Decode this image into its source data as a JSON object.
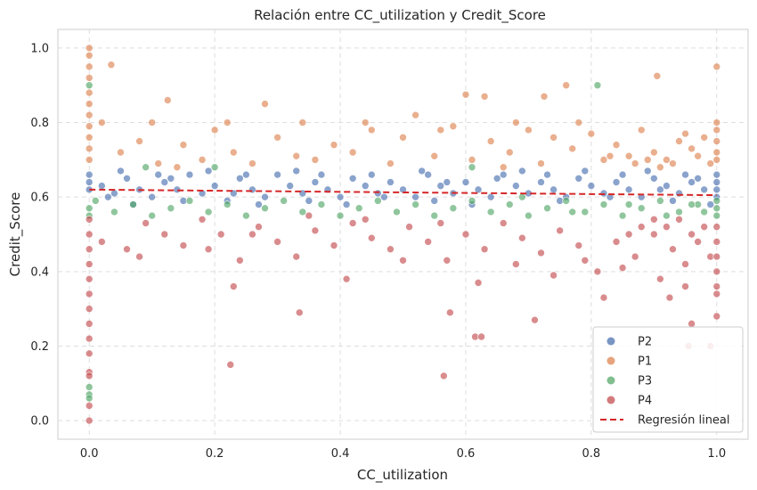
{
  "chart_data": {
    "type": "scatter",
    "title": "Relación entre CC_utilization y Credit_Score",
    "xlabel": "CC_utilization",
    "ylabel": "Credit_Score",
    "xlim": [
      -0.05,
      1.05
    ],
    "ylim": [
      -0.05,
      1.05
    ],
    "xticks": [
      0.0,
      0.2,
      0.4,
      0.6,
      0.8,
      1.0
    ],
    "xtick_labels": [
      "0.0",
      "0.2",
      "0.4",
      "0.6",
      "0.8",
      "1.0"
    ],
    "yticks": [
      0.0,
      0.2,
      0.4,
      0.6,
      0.8,
      1.0
    ],
    "ytick_labels": [
      "0.0",
      "0.2",
      "0.4",
      "0.6",
      "0.8",
      "1.0"
    ],
    "grid": true,
    "grid_style": "dashed",
    "legend_position": "bottom-right",
    "series": [
      {
        "name": "P2",
        "color": "#4c72b0",
        "points": [
          [
            0.0,
            0.62
          ],
          [
            0.0,
            0.64
          ],
          [
            0.0,
            0.66
          ],
          [
            0.02,
            0.63
          ],
          [
            0.04,
            0.61
          ],
          [
            0.06,
            0.65
          ],
          [
            0.08,
            0.62
          ],
          [
            0.1,
            0.6
          ],
          [
            0.12,
            0.64
          ],
          [
            0.14,
            0.62
          ],
          [
            0.16,
            0.66
          ],
          [
            0.18,
            0.61
          ],
          [
            0.2,
            0.63
          ],
          [
            0.22,
            0.59
          ],
          [
            0.24,
            0.65
          ],
          [
            0.26,
            0.62
          ],
          [
            0.28,
            0.6
          ],
          [
            0.3,
            0.66
          ],
          [
            0.32,
            0.63
          ],
          [
            0.34,
            0.61
          ],
          [
            0.36,
            0.64
          ],
          [
            0.38,
            0.62
          ],
          [
            0.4,
            0.6
          ],
          [
            0.42,
            0.65
          ],
          [
            0.44,
            0.63
          ],
          [
            0.46,
            0.61
          ],
          [
            0.48,
            0.64
          ],
          [
            0.5,
            0.62
          ],
          [
            0.52,
            0.6
          ],
          [
            0.54,
            0.66
          ],
          [
            0.56,
            0.63
          ],
          [
            0.58,
            0.61
          ],
          [
            0.6,
            0.64
          ],
          [
            0.62,
            0.62
          ],
          [
            0.64,
            0.6
          ],
          [
            0.66,
            0.66
          ],
          [
            0.68,
            0.63
          ],
          [
            0.7,
            0.61
          ],
          [
            0.72,
            0.64
          ],
          [
            0.74,
            0.62
          ],
          [
            0.76,
            0.6
          ],
          [
            0.78,
            0.65
          ],
          [
            0.8,
            0.63
          ],
          [
            0.82,
            0.61
          ],
          [
            0.84,
            0.64
          ],
          [
            0.86,
            0.62
          ],
          [
            0.88,
            0.6
          ],
          [
            0.9,
            0.65
          ],
          [
            0.92,
            0.63
          ],
          [
            0.94,
            0.61
          ],
          [
            0.96,
            0.64
          ],
          [
            0.98,
            0.62
          ],
          [
            1.0,
            0.6
          ],
          [
            1.0,
            0.62
          ],
          [
            1.0,
            0.64
          ],
          [
            1.0,
            0.66
          ],
          [
            0.97,
            0.65
          ],
          [
            0.93,
            0.59
          ],
          [
            0.85,
            0.66
          ],
          [
            0.75,
            0.59
          ],
          [
            0.65,
            0.65
          ],
          [
            0.55,
            0.59
          ],
          [
            0.45,
            0.66
          ],
          [
            0.35,
            0.59
          ],
          [
            0.25,
            0.66
          ],
          [
            0.15,
            0.59
          ],
          [
            0.05,
            0.67
          ],
          [
            0.11,
            0.66
          ],
          [
            0.33,
            0.67
          ],
          [
            0.61,
            0.58
          ],
          [
            0.79,
            0.67
          ],
          [
            0.99,
            0.58
          ],
          [
            0.89,
            0.67
          ],
          [
            0.69,
            0.67
          ],
          [
            0.53,
            0.67
          ],
          [
            0.41,
            0.58
          ],
          [
            0.27,
            0.58
          ],
          [
            0.19,
            0.67
          ],
          [
            0.07,
            0.58
          ],
          [
            0.91,
            0.62
          ],
          [
            0.95,
            0.66
          ],
          [
            0.83,
            0.6
          ],
          [
            0.73,
            0.66
          ],
          [
            0.57,
            0.64
          ],
          [
            0.47,
            0.6
          ],
          [
            0.37,
            0.66
          ],
          [
            0.23,
            0.61
          ],
          [
            0.13,
            0.65
          ],
          [
            0.03,
            0.6
          ]
        ]
      },
      {
        "name": "P1",
        "color": "#dd8452",
        "points": [
          [
            0.0,
            1.0
          ],
          [
            0.0,
            0.98
          ],
          [
            0.0,
            0.95
          ],
          [
            0.0,
            0.92
          ],
          [
            0.0,
            0.88
          ],
          [
            0.0,
            0.85
          ],
          [
            0.0,
            0.82
          ],
          [
            0.0,
            0.79
          ],
          [
            0.0,
            0.76
          ],
          [
            0.0,
            0.73
          ],
          [
            0.0,
            0.7
          ],
          [
            0.035,
            0.955
          ],
          [
            0.125,
            0.86
          ],
          [
            0.28,
            0.85
          ],
          [
            0.6,
            0.875
          ],
          [
            0.63,
            0.87
          ],
          [
            0.725,
            0.87
          ],
          [
            0.76,
            0.9
          ],
          [
            0.905,
            0.925
          ],
          [
            1.0,
            0.95
          ],
          [
            0.02,
            0.8
          ],
          [
            0.05,
            0.72
          ],
          [
            0.08,
            0.75
          ],
          [
            0.11,
            0.69
          ],
          [
            0.15,
            0.74
          ],
          [
            0.18,
            0.7
          ],
          [
            0.2,
            0.78
          ],
          [
            0.23,
            0.72
          ],
          [
            0.26,
            0.69
          ],
          [
            0.3,
            0.76
          ],
          [
            0.33,
            0.71
          ],
          [
            0.36,
            0.7
          ],
          [
            0.39,
            0.74
          ],
          [
            0.42,
            0.72
          ],
          [
            0.45,
            0.78
          ],
          [
            0.48,
            0.69
          ],
          [
            0.5,
            0.76
          ],
          [
            0.52,
            0.82
          ],
          [
            0.55,
            0.71
          ],
          [
            0.58,
            0.79
          ],
          [
            0.61,
            0.7
          ],
          [
            0.64,
            0.75
          ],
          [
            0.67,
            0.72
          ],
          [
            0.7,
            0.78
          ],
          [
            0.72,
            0.69
          ],
          [
            0.74,
            0.76
          ],
          [
            0.77,
            0.73
          ],
          [
            0.8,
            0.77
          ],
          [
            0.82,
            0.7
          ],
          [
            0.84,
            0.74
          ],
          [
            0.86,
            0.71
          ],
          [
            0.88,
            0.78
          ],
          [
            0.9,
            0.72
          ],
          [
            0.92,
            0.7
          ],
          [
            0.94,
            0.75
          ],
          [
            0.96,
            0.73
          ],
          [
            0.98,
            0.76
          ],
          [
            1.0,
            0.8
          ],
          [
            1.0,
            0.78
          ],
          [
            1.0,
            0.75
          ],
          [
            1.0,
            0.72
          ],
          [
            1.0,
            0.7
          ],
          [
            0.99,
            0.69
          ],
          [
            0.97,
            0.71
          ],
          [
            0.93,
            0.69
          ],
          [
            0.89,
            0.7
          ],
          [
            0.87,
            0.69
          ],
          [
            0.83,
            0.71
          ],
          [
            0.78,
            0.8
          ],
          [
            0.68,
            0.8
          ],
          [
            0.56,
            0.78
          ],
          [
            0.44,
            0.8
          ],
          [
            0.34,
            0.8
          ],
          [
            0.22,
            0.8
          ],
          [
            0.1,
            0.8
          ],
          [
            0.14,
            0.68
          ],
          [
            0.66,
            0.68
          ],
          [
            0.91,
            0.68
          ],
          [
            0.95,
            0.77
          ]
        ]
      },
      {
        "name": "P3",
        "color": "#55a868",
        "points": [
          [
            0.0,
            0.9
          ],
          [
            0.0,
            0.07
          ],
          [
            0.0,
            0.09
          ],
          [
            0.0,
            0.06
          ],
          [
            0.0,
            0.55
          ],
          [
            0.0,
            0.57
          ],
          [
            0.81,
            0.9
          ],
          [
            0.01,
            0.59
          ],
          [
            0.04,
            0.56
          ],
          [
            0.07,
            0.58
          ],
          [
            0.1,
            0.55
          ],
          [
            0.13,
            0.57
          ],
          [
            0.16,
            0.59
          ],
          [
            0.19,
            0.56
          ],
          [
            0.22,
            0.58
          ],
          [
            0.25,
            0.55
          ],
          [
            0.28,
            0.57
          ],
          [
            0.31,
            0.59
          ],
          [
            0.34,
            0.56
          ],
          [
            0.37,
            0.58
          ],
          [
            0.4,
            0.55
          ],
          [
            0.43,
            0.57
          ],
          [
            0.46,
            0.59
          ],
          [
            0.49,
            0.56
          ],
          [
            0.52,
            0.58
          ],
          [
            0.55,
            0.55
          ],
          [
            0.58,
            0.57
          ],
          [
            0.61,
            0.59
          ],
          [
            0.64,
            0.56
          ],
          [
            0.67,
            0.58
          ],
          [
            0.7,
            0.55
          ],
          [
            0.73,
            0.57
          ],
          [
            0.76,
            0.59
          ],
          [
            0.79,
            0.56
          ],
          [
            0.82,
            0.58
          ],
          [
            0.85,
            0.55
          ],
          [
            0.88,
            0.57
          ],
          [
            0.91,
            0.59
          ],
          [
            0.94,
            0.56
          ],
          [
            0.97,
            0.58
          ],
          [
            1.0,
            0.55
          ],
          [
            1.0,
            0.57
          ],
          [
            1.0,
            0.59
          ],
          [
            0.98,
            0.56
          ],
          [
            0.92,
            0.55
          ],
          [
            0.86,
            0.58
          ],
          [
            0.2,
            0.68
          ],
          [
            0.09,
            0.68
          ],
          [
            0.61,
            0.68
          ],
          [
            0.69,
            0.6
          ],
          [
            0.77,
            0.56
          ],
          [
            0.96,
            0.58
          ]
        ]
      },
      {
        "name": "P4",
        "color": "#c44e52",
        "points": [
          [
            0.0,
            0.54
          ],
          [
            0.0,
            0.5
          ],
          [
            0.0,
            0.46
          ],
          [
            0.0,
            0.42
          ],
          [
            0.0,
            0.38
          ],
          [
            0.0,
            0.34
          ],
          [
            0.0,
            0.3
          ],
          [
            0.0,
            0.26
          ],
          [
            0.0,
            0.22
          ],
          [
            0.0,
            0.18
          ],
          [
            0.0,
            0.13
          ],
          [
            0.0,
            0.12
          ],
          [
            0.0,
            0.04
          ],
          [
            0.0,
            0.0
          ],
          [
            0.225,
            0.15
          ],
          [
            0.23,
            0.36
          ],
          [
            0.335,
            0.29
          ],
          [
            0.565,
            0.12
          ],
          [
            0.575,
            0.29
          ],
          [
            0.615,
            0.225
          ],
          [
            0.625,
            0.225
          ],
          [
            0.71,
            0.27
          ],
          [
            0.82,
            0.33
          ],
          [
            0.925,
            0.33
          ],
          [
            0.96,
            0.26
          ],
          [
            0.955,
            0.2
          ],
          [
            0.99,
            0.2
          ],
          [
            1.0,
            0.28
          ],
          [
            1.0,
            0.34
          ],
          [
            0.02,
            0.48
          ],
          [
            0.06,
            0.46
          ],
          [
            0.09,
            0.53
          ],
          [
            0.12,
            0.5
          ],
          [
            0.15,
            0.47
          ],
          [
            0.18,
            0.54
          ],
          [
            0.21,
            0.5
          ],
          [
            0.24,
            0.43
          ],
          [
            0.27,
            0.52
          ],
          [
            0.3,
            0.48
          ],
          [
            0.33,
            0.44
          ],
          [
            0.36,
            0.51
          ],
          [
            0.39,
            0.47
          ],
          [
            0.42,
            0.53
          ],
          [
            0.45,
            0.49
          ],
          [
            0.48,
            0.46
          ],
          [
            0.51,
            0.52
          ],
          [
            0.54,
            0.48
          ],
          [
            0.57,
            0.43
          ],
          [
            0.6,
            0.5
          ],
          [
            0.63,
            0.46
          ],
          [
            0.66,
            0.53
          ],
          [
            0.69,
            0.49
          ],
          [
            0.72,
            0.45
          ],
          [
            0.75,
            0.51
          ],
          [
            0.78,
            0.47
          ],
          [
            0.81,
            0.4
          ],
          [
            0.84,
            0.48
          ],
          [
            0.87,
            0.44
          ],
          [
            0.9,
            0.5
          ],
          [
            0.93,
            0.46
          ],
          [
            0.95,
            0.42
          ],
          [
            0.97,
            0.48
          ],
          [
            0.99,
            0.44
          ],
          [
            1.0,
            0.52
          ],
          [
            1.0,
            0.48
          ],
          [
            1.0,
            0.44
          ],
          [
            1.0,
            0.4
          ],
          [
            1.0,
            0.36
          ],
          [
            0.98,
            0.52
          ],
          [
            0.96,
            0.5
          ],
          [
            0.94,
            0.54
          ],
          [
            0.92,
            0.52
          ],
          [
            0.9,
            0.54
          ],
          [
            0.88,
            0.52
          ],
          [
            0.86,
            0.5
          ],
          [
            0.85,
            0.41
          ],
          [
            0.91,
            0.38
          ],
          [
            0.95,
            0.36
          ],
          [
            0.62,
            0.37
          ],
          [
            0.68,
            0.42
          ],
          [
            0.74,
            0.39
          ],
          [
            0.79,
            0.43
          ],
          [
            0.5,
            0.43
          ],
          [
            0.56,
            0.53
          ],
          [
            0.41,
            0.38
          ],
          [
            0.44,
            0.54
          ],
          [
            0.35,
            0.55
          ],
          [
            0.19,
            0.46
          ],
          [
            0.26,
            0.5
          ],
          [
            0.08,
            0.44
          ]
        ]
      }
    ],
    "regression": {
      "name": "Regresión lineal",
      "color": "#d62728",
      "x": [
        0.0,
        1.0
      ],
      "y": [
        0.62,
        0.605
      ]
    },
    "legend": {
      "entries": [
        "P2",
        "P1",
        "P3",
        "P4",
        "Regresión lineal"
      ]
    }
  }
}
